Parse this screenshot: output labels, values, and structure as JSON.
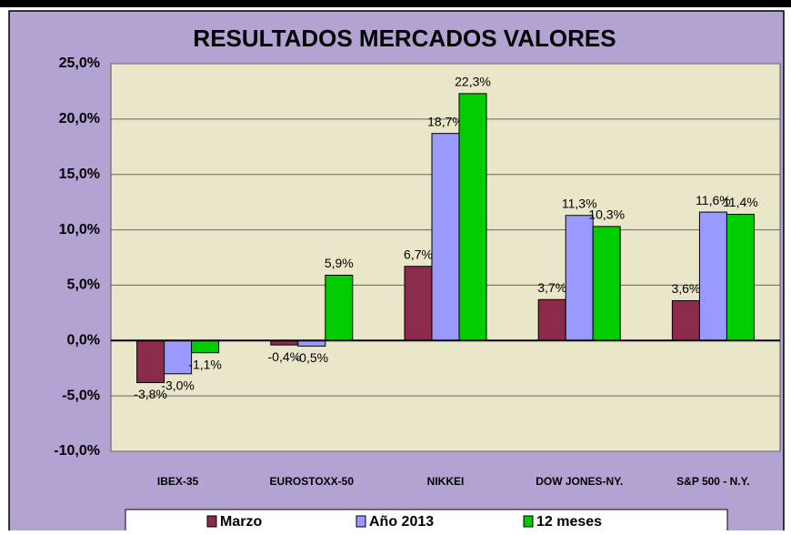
{
  "chart_data": {
    "type": "bar",
    "title": "RESULTADOS MERCADOS VALORES",
    "categories": [
      "IBEX-35",
      "EUROSTOXX-50",
      "NIKKEI",
      "DOW JONES-NY.",
      "S&P 500 - N.Y."
    ],
    "series": [
      {
        "name": "Marzo",
        "color": "#8b2a4a",
        "values": [
          -3.8,
          -0.4,
          6.7,
          3.7,
          3.6
        ],
        "value_labels": [
          "-3,8%",
          "-0,4%",
          "6,7%",
          "3,7%",
          "3,6%"
        ]
      },
      {
        "name": "Año 2013",
        "color": "#9999ff",
        "values": [
          -3.0,
          -0.5,
          18.7,
          11.3,
          11.6
        ],
        "value_labels": [
          "-3,0%",
          "-0,5%",
          "18,7%",
          "11,3%",
          "11,6%"
        ]
      },
      {
        "name": "12 meses",
        "color": "#00cc00",
        "values": [
          -1.1,
          5.9,
          22.3,
          10.3,
          11.4
        ],
        "value_labels": [
          "-1,1%",
          "5,9%",
          "22,3%",
          "10,3%",
          "11,4%"
        ]
      }
    ],
    "ylim": [
      -10,
      25
    ],
    "yticks": [
      {
        "value": -10,
        "label": "-10,0%"
      },
      {
        "value": -5,
        "label": "-5,0%"
      },
      {
        "value": 0,
        "label": "0,0%"
      },
      {
        "value": 5,
        "label": "5,0%"
      },
      {
        "value": 10,
        "label": "10,0%"
      },
      {
        "value": 15,
        "label": "15,0%"
      },
      {
        "value": 20,
        "label": "20,0%"
      },
      {
        "value": 25,
        "label": "25,0%"
      }
    ],
    "grid": true,
    "legend": "bottom"
  }
}
